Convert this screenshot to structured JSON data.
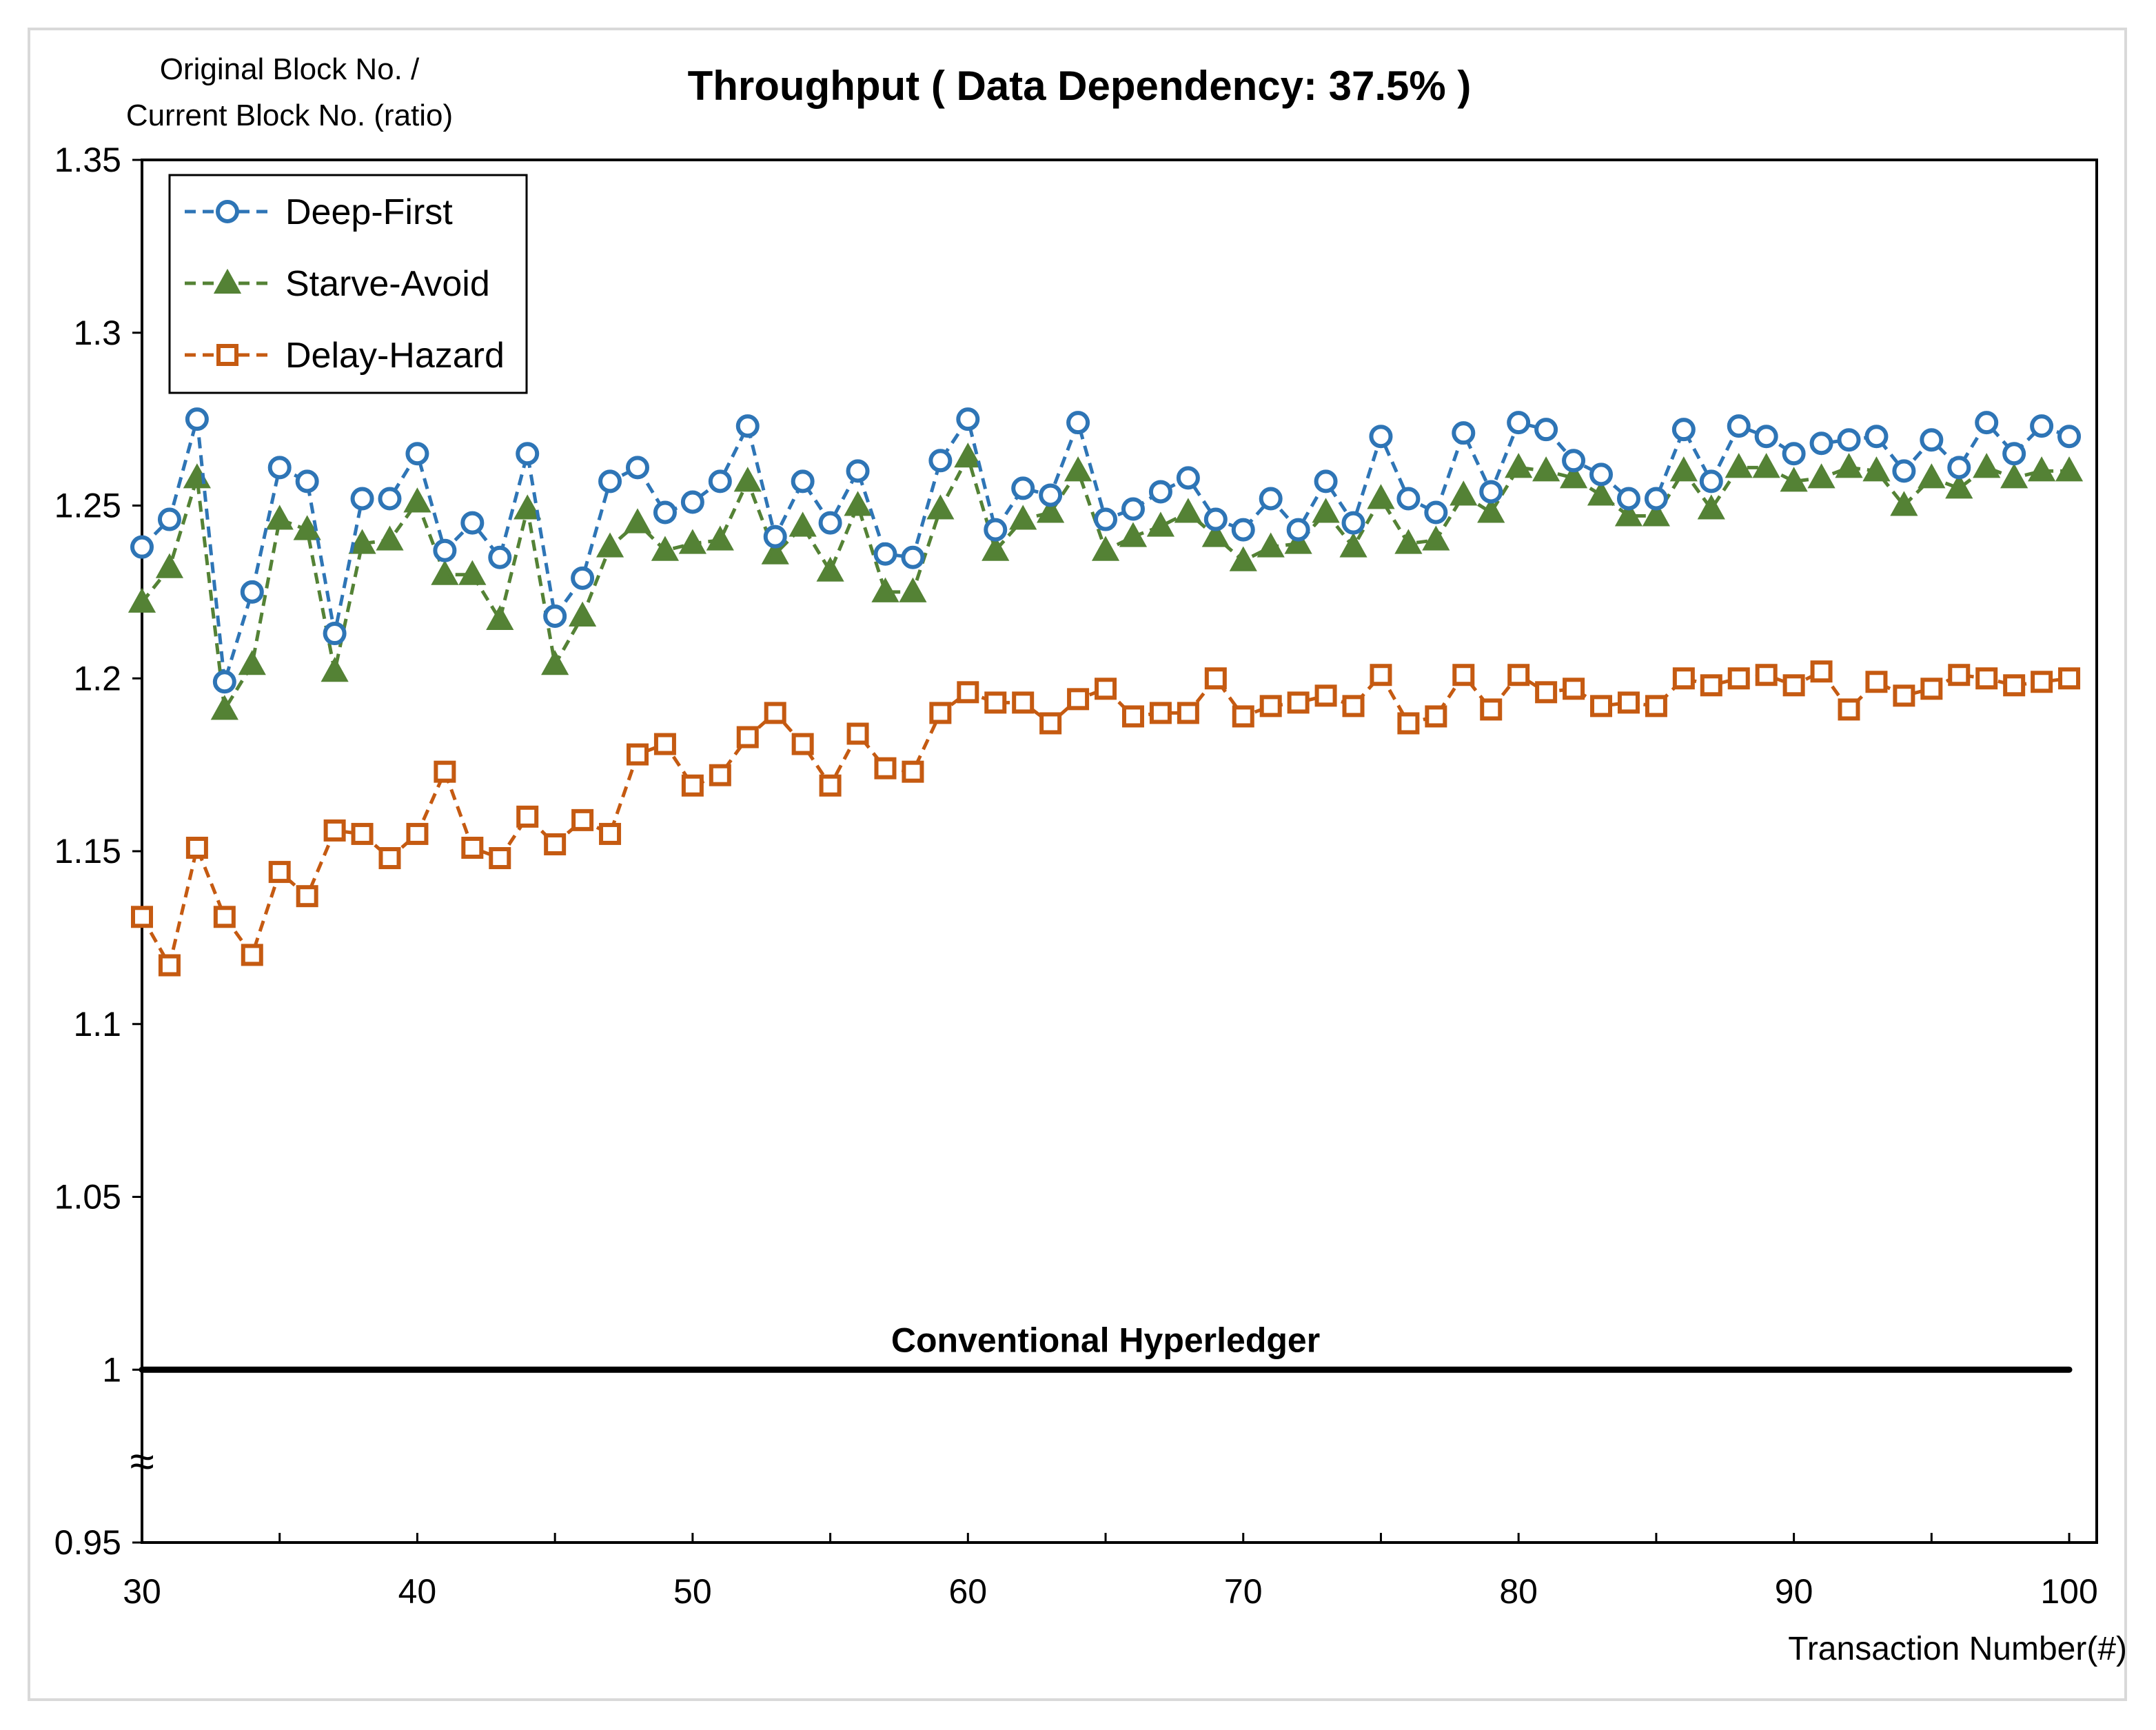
{
  "chart_data": {
    "type": "line",
    "title": "Throughput ( Data Dependency: 37.5% )",
    "ylabel_line1": "Original Block No. /",
    "ylabel_line2": "Current Block No. (ratio)",
    "xlabel": "Transaction Number(#)",
    "xlim": [
      30,
      101
    ],
    "ylim": [
      0.95,
      1.35
    ],
    "xticks": [
      30,
      40,
      50,
      60,
      70,
      80,
      90,
      100
    ],
    "yticks": [
      0.95,
      1,
      1.05,
      1.1,
      1.15,
      1.2,
      1.25,
      1.3,
      1.35
    ],
    "axis_break_symbol": "≈",
    "legend_position": "top-left",
    "grid": false,
    "x": [
      30,
      31,
      32,
      33,
      34,
      35,
      36,
      37,
      38,
      39,
      40,
      41,
      42,
      43,
      44,
      45,
      46,
      47,
      48,
      49,
      50,
      51,
      52,
      53,
      54,
      55,
      56,
      57,
      58,
      59,
      60,
      61,
      62,
      63,
      64,
      65,
      66,
      67,
      68,
      69,
      70,
      71,
      72,
      73,
      74,
      75,
      76,
      77,
      78,
      79,
      80,
      81,
      82,
      83,
      84,
      85,
      86,
      87,
      88,
      89,
      90,
      91,
      92,
      93,
      94,
      95,
      96,
      97,
      98,
      99,
      100
    ],
    "series": [
      {
        "name": "Deep-First",
        "color": "#2e75b6",
        "marker": "circle",
        "values": [
          1.238,
          1.246,
          1.275,
          1.199,
          1.225,
          1.261,
          1.257,
          1.213,
          1.252,
          1.252,
          1.265,
          1.237,
          1.245,
          1.235,
          1.265,
          1.218,
          1.229,
          1.257,
          1.261,
          1.248,
          1.251,
          1.257,
          1.273,
          1.241,
          1.257,
          1.245,
          1.26,
          1.236,
          1.235,
          1.263,
          1.275,
          1.243,
          1.255,
          1.253,
          1.274,
          1.246,
          1.249,
          1.254,
          1.258,
          1.246,
          1.243,
          1.252,
          1.243,
          1.257,
          1.245,
          1.27,
          1.252,
          1.248,
          1.271,
          1.254,
          1.274,
          1.272,
          1.263,
          1.259,
          1.252,
          1.252,
          1.272,
          1.257,
          1.273,
          1.27,
          1.265,
          1.268,
          1.269,
          1.27,
          1.26,
          1.269,
          1.261,
          1.274,
          1.265,
          1.273,
          1.27
        ]
      },
      {
        "name": "Starve-Avoid",
        "color": "#548235",
        "marker": "triangle",
        "values": [
          1.222,
          1.232,
          1.258,
          1.191,
          1.204,
          1.246,
          1.243,
          1.202,
          1.239,
          1.24,
          1.251,
          1.23,
          1.23,
          1.217,
          1.249,
          1.204,
          1.218,
          1.238,
          1.245,
          1.237,
          1.239,
          1.24,
          1.257,
          1.236,
          1.244,
          1.231,
          1.25,
          1.225,
          1.225,
          1.249,
          1.264,
          1.237,
          1.246,
          1.248,
          1.26,
          1.237,
          1.241,
          1.244,
          1.248,
          1.241,
          1.234,
          1.238,
          1.239,
          1.248,
          1.238,
          1.252,
          1.239,
          1.24,
          1.253,
          1.248,
          1.261,
          1.26,
          1.258,
          1.253,
          1.247,
          1.247,
          1.26,
          1.249,
          1.261,
          1.261,
          1.257,
          1.258,
          1.261,
          1.26,
          1.25,
          1.258,
          1.255,
          1.261,
          1.258,
          1.26,
          1.26
        ]
      },
      {
        "name": "Delay-Hazard",
        "color": "#c55a11",
        "marker": "square",
        "values": [
          1.131,
          1.117,
          1.151,
          1.131,
          1.12,
          1.144,
          1.137,
          1.156,
          1.155,
          1.148,
          1.155,
          1.173,
          1.151,
          1.148,
          1.16,
          1.152,
          1.159,
          1.155,
          1.178,
          1.181,
          1.169,
          1.172,
          1.183,
          1.19,
          1.181,
          1.169,
          1.184,
          1.174,
          1.173,
          1.19,
          1.196,
          1.193,
          1.193,
          1.187,
          1.194,
          1.197,
          1.189,
          1.19,
          1.19,
          1.2,
          1.189,
          1.192,
          1.193,
          1.195,
          1.192,
          1.201,
          1.187,
          1.189,
          1.201,
          1.191,
          1.201,
          1.196,
          1.197,
          1.192,
          1.193,
          1.192,
          1.2,
          1.198,
          1.2,
          1.201,
          1.198,
          1.202,
          1.191,
          1.199,
          1.195,
          1.197,
          1.201,
          1.2,
          1.198,
          1.199,
          1.2
        ]
      }
    ],
    "reference_line": {
      "label": "Conventional Hyperledger",
      "y": 1.0,
      "x_range": [
        30,
        100
      ],
      "color": "#000000"
    }
  }
}
